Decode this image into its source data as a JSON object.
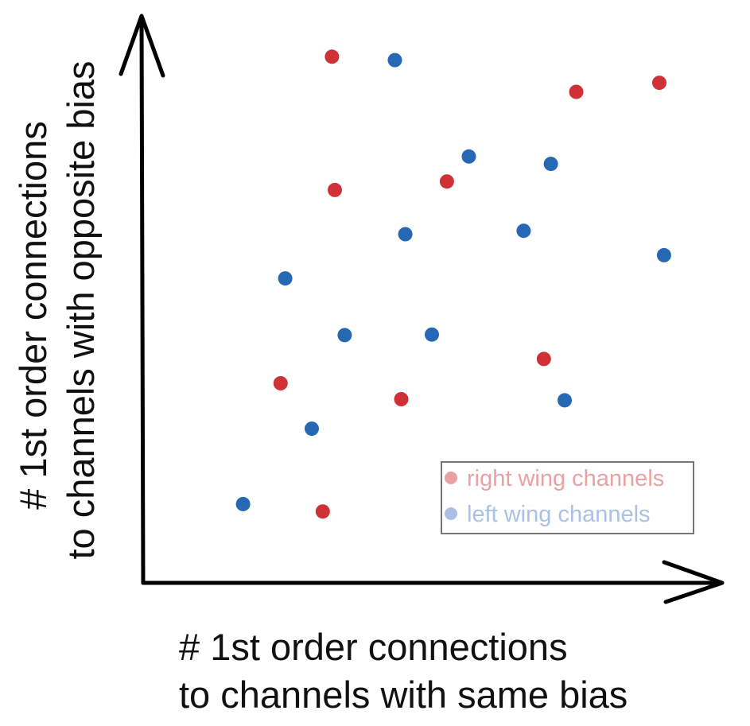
{
  "chart_data": {
    "type": "scatter",
    "title": "",
    "xlabel": [
      "# 1st order connections",
      "to channels with same bias"
    ],
    "ylabel": [
      "# 1st order connections",
      "to channels with opposite bias"
    ],
    "xlim": [
      0,
      100
    ],
    "ylim": [
      0,
      100
    ],
    "grid": false,
    "axis_ticks": false,
    "legend_position": "bottom-right",
    "series": [
      {
        "name": "right wing channels",
        "color": "#cf3136",
        "legend_color": "#e8a2a4",
        "points": [
          {
            "x": 32.7,
            "y": 92.8
          },
          {
            "x": 75.0,
            "y": 86.6
          },
          {
            "x": 89.4,
            "y": 88.2
          },
          {
            "x": 33.2,
            "y": 69.3
          },
          {
            "x": 52.6,
            "y": 70.8
          },
          {
            "x": 23.8,
            "y": 35.2
          },
          {
            "x": 44.7,
            "y": 32.4
          },
          {
            "x": 69.4,
            "y": 39.5
          },
          {
            "x": 31.1,
            "y": 12.6
          }
        ]
      },
      {
        "name": "left wing channels",
        "color": "#2668b4",
        "legend_color": "#a9c1e6",
        "points": [
          {
            "x": 43.6,
            "y": 92.2
          },
          {
            "x": 56.4,
            "y": 75.2
          },
          {
            "x": 70.6,
            "y": 73.9
          },
          {
            "x": 45.4,
            "y": 61.5
          },
          {
            "x": 65.9,
            "y": 62.1
          },
          {
            "x": 90.2,
            "y": 57.8
          },
          {
            "x": 24.6,
            "y": 53.7
          },
          {
            "x": 34.9,
            "y": 43.7
          },
          {
            "x": 50.0,
            "y": 43.8
          },
          {
            "x": 29.2,
            "y": 27.2
          },
          {
            "x": 73.0,
            "y": 32.2
          },
          {
            "x": 17.3,
            "y": 13.9
          }
        ]
      }
    ]
  }
}
